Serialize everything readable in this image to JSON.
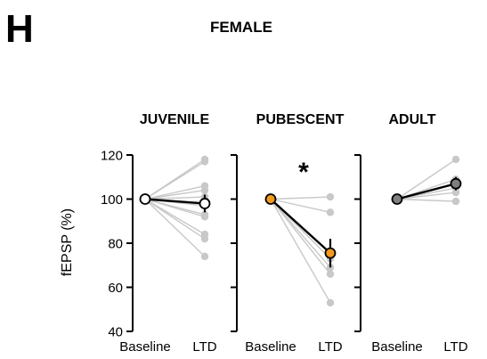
{
  "figure": {
    "panel_letter": "H",
    "title": "FEMALE",
    "ylabel": "fEPSP (%)"
  },
  "chart_data": [
    {
      "type": "line",
      "title": "JUVENILE",
      "categories": [
        "Baseline",
        "LTD"
      ],
      "ylabel": "fEPSP (%)",
      "ylim": [
        40,
        120
      ],
      "yticks": [
        40,
        60,
        80,
        100,
        120
      ],
      "individual": [
        [
          100,
          118
        ],
        [
          100,
          117
        ],
        [
          100,
          106
        ],
        [
          100,
          104
        ],
        [
          100,
          101
        ],
        [
          100,
          97
        ],
        [
          100,
          93
        ],
        [
          100,
          92
        ],
        [
          100,
          84
        ],
        [
          100,
          82
        ],
        [
          100,
          74
        ]
      ],
      "mean": [
        100,
        98
      ],
      "mean_error": [
        0,
        4
      ],
      "mean_color": "#ffffff",
      "individual_color": "#c8c8c8"
    },
    {
      "type": "line",
      "title": "PUBESCENT",
      "categories": [
        "Baseline",
        "LTD"
      ],
      "ylim": [
        40,
        120
      ],
      "annotation": "*",
      "individual": [
        [
          100,
          101
        ],
        [
          100,
          94
        ],
        [
          100,
          73
        ],
        [
          100,
          69
        ],
        [
          100,
          66
        ],
        [
          100,
          53
        ]
      ],
      "mean": [
        100,
        75.5
      ],
      "mean_error": [
        0,
        6.5
      ],
      "mean_color": "#f39a1e",
      "individual_color": "#c8c8c8"
    },
    {
      "type": "line",
      "title": "ADULT",
      "categories": [
        "Baseline",
        "LTD"
      ],
      "ylim": [
        40,
        120
      ],
      "individual": [
        [
          100,
          118
        ],
        [
          100,
          109
        ],
        [
          100,
          107
        ],
        [
          100,
          105
        ],
        [
          100,
          103
        ],
        [
          100,
          99
        ]
      ],
      "mean": [
        100,
        107
      ],
      "mean_error": [
        0,
        3
      ],
      "mean_color": "#7f7f7f",
      "individual_color": "#c8c8c8"
    }
  ]
}
